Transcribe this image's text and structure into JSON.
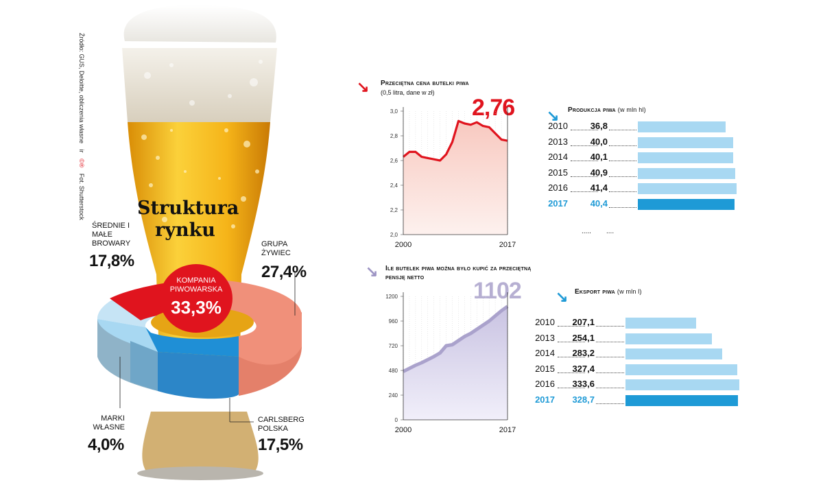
{
  "source": {
    "text": "Źródło: GUS, Deloitte, obliczenia własne",
    "credit": "Fot. Shutterstock",
    "initials": "ir",
    "logo": "©®"
  },
  "market": {
    "title_line1": "Struktura",
    "title_line2": "rynku"
  },
  "colors": {
    "red": "#e0141e",
    "salmon": "#f0907a",
    "blue": "#1f8fd6",
    "lightblue": "#a8d8f2",
    "purple": "#b6afd2",
    "beer": "#f5b81a"
  },
  "chart_data": [
    {
      "type": "pie",
      "title": "Struktura rynku",
      "slices": [
        {
          "label": "KOMPANIA PIWOWARSKA",
          "value": 33.3,
          "display": "33,3%",
          "color": "#e0141e"
        },
        {
          "label": "GRUPA ŻYWIEC",
          "value": 27.4,
          "display": "27,4%",
          "color": "#f0907a"
        },
        {
          "label": "CARLSBERG POLSKA",
          "value": 17.5,
          "display": "17,5%",
          "color": "#1f8fd6"
        },
        {
          "label": "MARKI WŁASNE",
          "value": 4.0,
          "display": "4,0%",
          "color": "#5fb8ea"
        },
        {
          "label": "ŚREDNIE I MAŁE BROWARY",
          "value": 17.8,
          "display": "17,8%",
          "color": "#a8d8f2"
        }
      ]
    },
    {
      "type": "line",
      "title": "Przeciętna cena butelki piwa",
      "subtitle": "(0,5 litra, dane w zł)",
      "highlight": "2,76",
      "x": [
        2000,
        2001,
        2002,
        2003,
        2004,
        2005,
        2006,
        2007,
        2008,
        2009,
        2010,
        2011,
        2012,
        2013,
        2014,
        2015,
        2016,
        2017
      ],
      "y": [
        2.63,
        2.67,
        2.67,
        2.63,
        2.62,
        2.61,
        2.6,
        2.65,
        2.75,
        2.92,
        2.9,
        2.89,
        2.91,
        2.88,
        2.87,
        2.82,
        2.77,
        2.76
      ],
      "ylim": [
        2.0,
        3.0
      ],
      "yticks": [
        "3,0",
        "2,8",
        "2,6",
        "2,4",
        "2,2",
        "2,0"
      ],
      "xticks": [
        "2000",
        "2017"
      ],
      "color": "#e0141e"
    },
    {
      "type": "area",
      "title": "Ile butelek piwa można było kupić za przeciętną pensję netto",
      "highlight": "1102",
      "x": [
        2000,
        2001,
        2002,
        2003,
        2004,
        2005,
        2006,
        2007,
        2008,
        2009,
        2010,
        2011,
        2012,
        2013,
        2014,
        2015,
        2016,
        2017
      ],
      "y": [
        470,
        500,
        530,
        555,
        585,
        615,
        650,
        720,
        730,
        770,
        810,
        840,
        880,
        920,
        960,
        1010,
        1060,
        1102
      ],
      "ylim": [
        0,
        1200
      ],
      "yticks": [
        "1200",
        "960",
        "720",
        "480",
        "240",
        "0"
      ],
      "xticks": [
        "2000",
        "2017"
      ],
      "color": "#b6afd2"
    },
    {
      "type": "bar",
      "title": "Produkcja piwa",
      "unit": "(w mln hl)",
      "categories": [
        "2010",
        "2013",
        "2014",
        "2015",
        "2016",
        "2017"
      ],
      "values": [
        36.8,
        40.0,
        40.1,
        40.9,
        41.4,
        40.4
      ],
      "labels": [
        "36,8",
        "40,0",
        "40,1",
        "40,9",
        "41,4",
        "40,4"
      ],
      "extra": ".....",
      "extra2": "....",
      "max": 41.4
    },
    {
      "type": "bar",
      "title": "Eksport piwa",
      "unit": "(w mln l)",
      "categories": [
        "2010",
        "2013",
        "2014",
        "2015",
        "2016",
        "2017"
      ],
      "values": [
        207.1,
        254.1,
        283.2,
        327.4,
        333.6,
        328.7
      ],
      "labels": [
        "207,1",
        "254,1",
        "283,2",
        "327,4",
        "333,6",
        "328,7"
      ],
      "max": 333.6
    }
  ]
}
